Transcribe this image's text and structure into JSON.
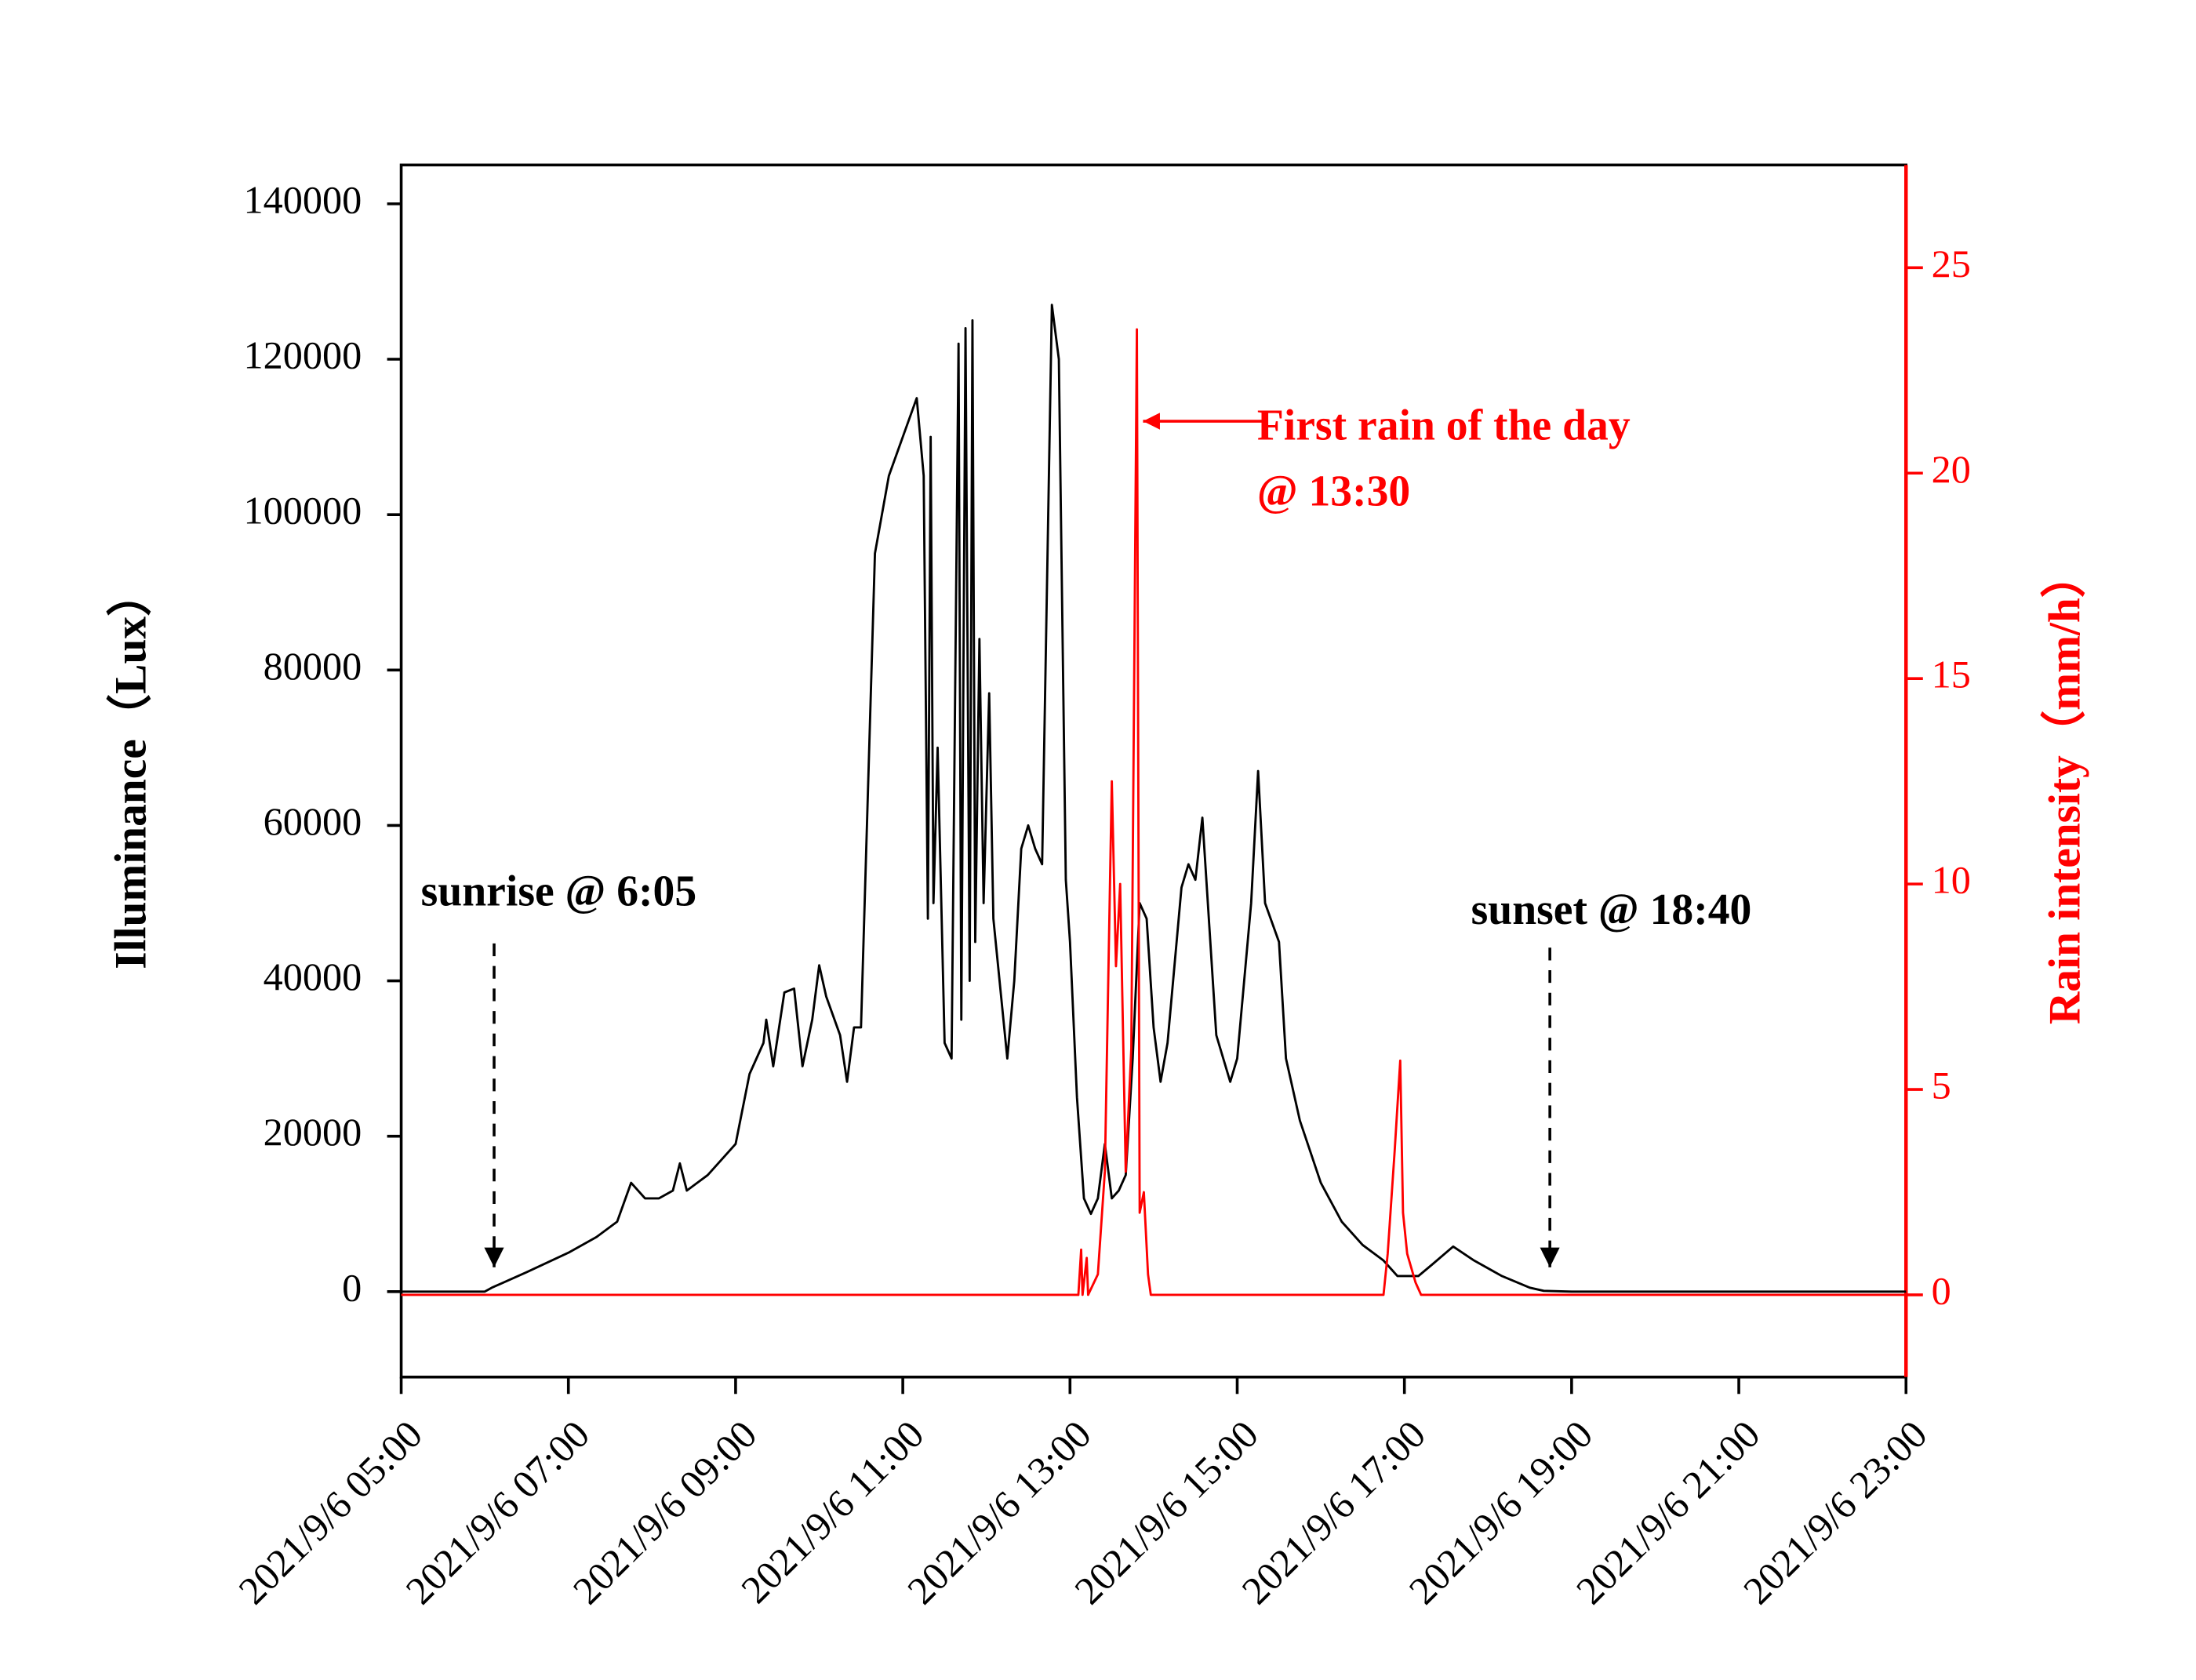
{
  "chart_data": {
    "type": "line",
    "ylabel": "Illuminance（Lux）",
    "y2label": "Rain intensity（mm/h）",
    "xlim": [
      "2021/9/6 05:00",
      "2021/9/6 23:00"
    ],
    "xticks": [
      "2021/9/6 05:00",
      "2021/9/6 07:00",
      "2021/9/6 09:00",
      "2021/9/6 11:00",
      "2021/9/6 13:00",
      "2021/9/6 15:00",
      "2021/9/6 17:00",
      "2021/9/6 19:00",
      "2021/9/6 21:00",
      "2021/9/6 23:00"
    ],
    "ylim": [
      -11000,
      145000
    ],
    "yticks": [
      0,
      20000,
      40000,
      60000,
      80000,
      100000,
      120000,
      140000
    ],
    "y2lim": [
      -2,
      27.5
    ],
    "y2ticks": [
      0,
      5,
      10,
      15,
      20,
      25
    ],
    "annotations": [
      "sunrise @ 6:05",
      "sunset @ 18:40",
      "First rain of the day",
      "@ 13:30"
    ],
    "series": [
      {
        "color": "#000000",
        "axis": "y",
        "x": [
          "2021/9/6 05:00",
          "2021/9/6 06:00",
          "2021/9/6 06:05",
          "2021/9/6 06:30",
          "2021/9/6 07:00",
          "2021/9/6 07:20",
          "2021/9/6 07:35",
          "2021/9/6 07:45",
          "2021/9/6 07:55",
          "2021/9/6 08:05",
          "2021/9/6 08:15",
          "2021/9/6 08:20",
          "2021/9/6 08:25",
          "2021/9/6 08:40",
          "2021/9/6 09:00",
          "2021/9/6 09:10",
          "2021/9/6 09:20",
          "2021/9/6 09:22",
          "2021/9/6 09:27",
          "2021/9/6 09:35",
          "2021/9/6 09:42",
          "2021/9/6 09:48",
          "2021/9/6 09:55",
          "2021/9/6 10:00",
          "2021/9/6 10:05",
          "2021/9/6 10:15",
          "2021/9/6 10:20",
          "2021/9/6 10:25",
          "2021/9/6 10:30",
          "2021/9/6 10:40",
          "2021/9/6 10:50",
          "2021/9/6 11:00",
          "2021/9/6 11:10",
          "2021/9/6 11:15",
          "2021/9/6 11:18",
          "2021/9/6 11:20",
          "2021/9/6 11:22",
          "2021/9/6 11:25",
          "2021/9/6 11:30",
          "2021/9/6 11:35",
          "2021/9/6 11:40",
          "2021/9/6 11:42",
          "2021/9/6 11:45",
          "2021/9/6 11:48",
          "2021/9/6 11:50",
          "2021/9/6 11:52",
          "2021/9/6 11:55",
          "2021/9/6 11:58",
          "2021/9/6 12:02",
          "2021/9/6 12:05",
          "2021/9/6 12:15",
          "2021/9/6 12:20",
          "2021/9/6 12:25",
          "2021/9/6 12:30",
          "2021/9/6 12:35",
          "2021/9/6 12:40",
          "2021/9/6 12:47",
          "2021/9/6 12:52",
          "2021/9/6 12:57",
          "2021/9/6 13:00",
          "2021/9/6 13:05",
          "2021/9/6 13:10",
          "2021/9/6 13:15",
          "2021/9/6 13:20",
          "2021/9/6 13:25",
          "2021/9/6 13:30",
          "2021/9/6 13:35",
          "2021/9/6 13:40",
          "2021/9/6 13:45",
          "2021/9/6 13:50",
          "2021/9/6 13:55",
          "2021/9/6 14:00",
          "2021/9/6 14:05",
          "2021/9/6 14:10",
          "2021/9/6 14:20",
          "2021/9/6 14:25",
          "2021/9/6 14:30",
          "2021/9/6 14:35",
          "2021/9/6 14:45",
          "2021/9/6 14:55",
          "2021/9/6 15:00",
          "2021/9/6 15:10",
          "2021/9/6 15:15",
          "2021/9/6 15:20",
          "2021/9/6 15:30",
          "2021/9/6 15:35",
          "2021/9/6 15:45",
          "2021/9/6 16:00",
          "2021/9/6 16:15",
          "2021/9/6 16:30",
          "2021/9/6 16:45",
          "2021/9/6 16:55",
          "2021/9/6 17:10",
          "2021/9/6 17:20",
          "2021/9/6 17:35",
          "2021/9/6 17:50",
          "2021/9/6 18:10",
          "2021/9/6 18:30",
          "2021/9/6 18:40",
          "2021/9/6 19:00",
          "2021/9/6 23:00"
        ],
        "values": [
          0,
          0,
          500,
          2500,
          5000,
          7000,
          9000,
          14000,
          12000,
          12000,
          13000,
          16500,
          13000,
          15000,
          19000,
          28000,
          32000,
          35000,
          29000,
          38500,
          39000,
          29000,
          35000,
          42000,
          38000,
          33000,
          27000,
          34000,
          34000,
          95000,
          105000,
          110000,
          115000,
          105000,
          48000,
          110000,
          50000,
          70000,
          32000,
          30000,
          122000,
          35000,
          124000,
          40000,
          125000,
          45000,
          84000,
          50000,
          77000,
          48000,
          30000,
          40000,
          57000,
          60000,
          57000,
          55000,
          127000,
          120000,
          53000,
          45000,
          25000,
          12000,
          10000,
          12000,
          19000,
          12000,
          13000,
          15000,
          30000,
          50000,
          48000,
          34000,
          27000,
          32000,
          52000,
          55000,
          53000,
          61000,
          33000,
          27000,
          30000,
          50000,
          67000,
          50000,
          45000,
          30000,
          22000,
          14000,
          9000,
          6000,
          4000,
          2000,
          2000,
          3500,
          5800,
          4000,
          2000,
          500,
          100,
          0,
          0
        ]
      },
      {
        "color": "#ff0000",
        "axis": "y2",
        "x": [
          "2021/9/6 05:00",
          "2021/9/6 13:06",
          "2021/9/6 13:08",
          "2021/9/6 13:09",
          "2021/9/6 13:12",
          "2021/9/6 13:13",
          "2021/9/6 13:20",
          "2021/9/6 13:25",
          "2021/9/6 13:30",
          "2021/9/6 13:33",
          "2021/9/6 13:36",
          "2021/9/6 13:40",
          "2021/9/6 13:44",
          "2021/9/6 13:48",
          "2021/9/6 13:50",
          "2021/9/6 13:53",
          "2021/9/6 13:56",
          "2021/9/6 13:58",
          "2021/9/6 16:45",
          "2021/9/6 16:48",
          "2021/9/6 16:53",
          "2021/9/6 16:57",
          "2021/9/6 16:59",
          "2021/9/6 17:02",
          "2021/9/6 17:08",
          "2021/9/6 17:12",
          "2021/9/6 23:00"
        ],
        "values": [
          0,
          0,
          1.1,
          0,
          0.9,
          0,
          0.5,
          3,
          12.5,
          8,
          10,
          3,
          6,
          23.5,
          2,
          2.5,
          0.5,
          0,
          0,
          1,
          3.5,
          5.7,
          2,
          1,
          0.3,
          0,
          0
        ]
      }
    ]
  }
}
